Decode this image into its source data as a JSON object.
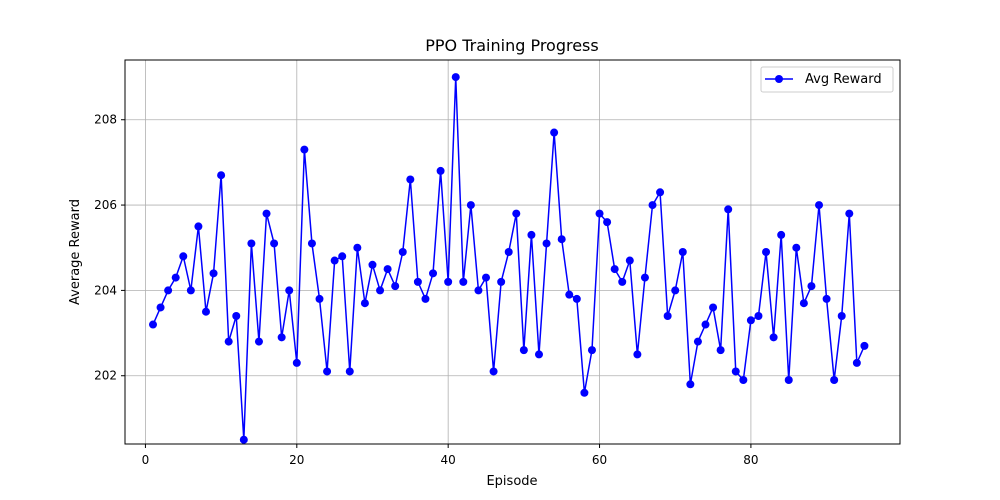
{
  "chart_data": {
    "type": "line",
    "title": "PPO Training Progress",
    "xlabel": "Episode",
    "ylabel": "Average Reward",
    "xlim": [
      -2.7,
      99.7
    ],
    "ylim": [
      200.4,
      209.4
    ],
    "xticks": [
      0,
      20,
      40,
      60,
      80
    ],
    "yticks": [
      202,
      204,
      206,
      208
    ],
    "grid": true,
    "legend_position": "top-right",
    "series": [
      {
        "name": "Avg Reward",
        "color": "#0000ff",
        "marker": "circle",
        "x": [
          1,
          2,
          3,
          4,
          5,
          6,
          7,
          8,
          9,
          10,
          11,
          12,
          13,
          14,
          15,
          16,
          17,
          18,
          19,
          20,
          21,
          22,
          23,
          24,
          25,
          26,
          27,
          28,
          29,
          30,
          31,
          32,
          33,
          34,
          35,
          36,
          37,
          38,
          39,
          40,
          41,
          42,
          43,
          44,
          45,
          46,
          47,
          48,
          49,
          50,
          51,
          52,
          53,
          54,
          55,
          56,
          57,
          58,
          59,
          60,
          61,
          62,
          63,
          64,
          65,
          66,
          67,
          68,
          69,
          70,
          71,
          72,
          73,
          74,
          75,
          76,
          77,
          78,
          79,
          80,
          81,
          82,
          83,
          84,
          85,
          86,
          87,
          88,
          89,
          90,
          91,
          92,
          93,
          94,
          95
        ],
        "y": [
          203.2,
          203.6,
          204.0,
          204.3,
          204.8,
          204.0,
          205.5,
          203.5,
          204.4,
          206.7,
          202.8,
          203.4,
          200.5,
          205.1,
          202.8,
          205.8,
          205.1,
          202.9,
          204.0,
          202.3,
          207.3,
          205.1,
          203.8,
          202.1,
          204.7,
          204.8,
          202.1,
          205.0,
          203.7,
          204.6,
          204.0,
          204.5,
          204.1,
          204.9,
          206.6,
          204.2,
          203.8,
          204.4,
          206.8,
          204.2,
          209.0,
          204.2,
          206.0,
          204.0,
          204.3,
          202.1,
          204.2,
          204.9,
          205.8,
          202.6,
          205.3,
          202.5,
          205.1,
          207.7,
          205.2,
          203.9,
          203.8,
          201.6,
          202.6,
          205.8,
          205.6,
          204.5,
          204.2,
          204.7,
          202.5,
          204.3,
          206.0,
          206.3,
          203.4,
          204.0,
          204.9,
          201.8,
          202.8,
          203.2,
          203.6,
          202.6,
          205.9,
          202.1,
          201.9,
          203.3,
          203.4,
          204.9,
          202.9,
          205.3,
          201.9,
          205.0,
          203.7,
          204.1,
          206.0,
          203.8,
          201.9,
          203.4,
          205.8,
          202.3,
          202.7
        ]
      }
    ]
  }
}
